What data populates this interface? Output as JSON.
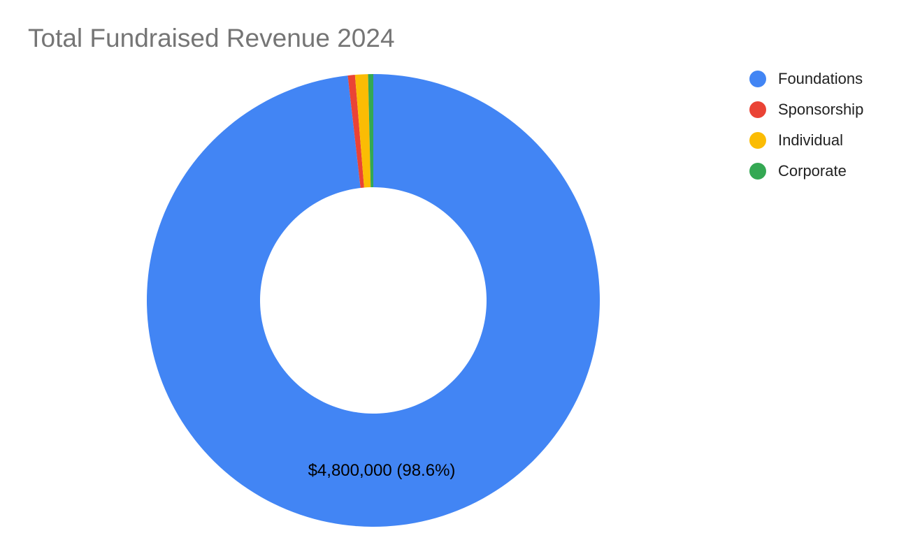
{
  "chart_data": {
    "type": "pie",
    "title": "Total Fundraised Revenue 2024",
    "categories": [
      "Foundations",
      "Sponsorship",
      "Individual",
      "Corporate"
    ],
    "values": [
      4800000,
      25000,
      45000,
      18000
    ],
    "colors": [
      "#4285f4",
      "#ea4335",
      "#fbbc04",
      "#34a853"
    ],
    "donut": true,
    "data_labels": [
      {
        "category": "Foundations",
        "text": "$4,800,000 (98.6%)"
      }
    ],
    "legend": "right"
  }
}
